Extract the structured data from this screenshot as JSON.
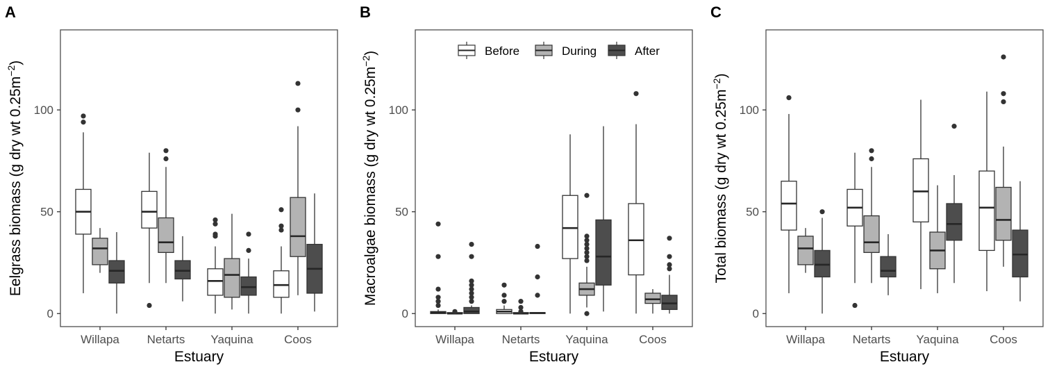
{
  "colors": {
    "Before": "#ffffff",
    "During": "#b3b3b3",
    "After": "#4d4d4d",
    "line": "#333333",
    "frame": "#4d4d4d"
  },
  "legend": {
    "items": [
      "Before",
      "During",
      "After"
    ],
    "placement": "top-center of panel B"
  },
  "chart_data": [
    {
      "type": "boxplot",
      "panel": "A",
      "xlabel": "Estuary",
      "ylabel": "Eelgrass biomass (g dry wt 0.25m",
      "ylabel_sup": "−2",
      "ylabel_end": ")",
      "categories": [
        "Willapa",
        "Netarts",
        "Yaquina",
        "Coos"
      ],
      "groups": [
        "Before",
        "During",
        "After"
      ],
      "yticks": [
        0,
        50,
        100
      ],
      "ylim": [
        -6.4,
        139.3
      ],
      "boxes": [
        [
          {
            "lo": 10,
            "q1": 39,
            "med": 50,
            "q3": 61,
            "hi": 89,
            "out": [
              94,
              97
            ]
          },
          {
            "lo": 20,
            "q1": 24,
            "med": 32,
            "q3": 37,
            "hi": 42,
            "out": []
          },
          {
            "lo": 0,
            "q1": 15,
            "med": 21,
            "q3": 26,
            "hi": 40,
            "out": []
          }
        ],
        [
          {
            "lo": 15,
            "q1": 42,
            "med": 50,
            "q3": 60,
            "hi": 79,
            "out": [
              4
            ]
          },
          {
            "lo": 15,
            "q1": 30,
            "med": 35,
            "q3": 47,
            "hi": 72,
            "out": [
              76,
              80
            ]
          },
          {
            "lo": 6,
            "q1": 17,
            "med": 21,
            "q3": 26,
            "hi": 38,
            "out": []
          }
        ],
        [
          {
            "lo": 0,
            "q1": 9,
            "med": 16,
            "q3": 22,
            "hi": 33,
            "out": [
              38,
              39,
              44,
              46
            ]
          },
          {
            "lo": 2,
            "q1": 8,
            "med": 19,
            "q3": 27,
            "hi": 49,
            "out": []
          },
          {
            "lo": 0,
            "q1": 9,
            "med": 13,
            "q3": 18,
            "hi": 27,
            "out": [
              31,
              39
            ]
          }
        ],
        [
          {
            "lo": 0,
            "q1": 8,
            "med": 14,
            "q3": 21,
            "hi": 33,
            "out": [
              41,
              43,
              51
            ]
          },
          {
            "lo": 9,
            "q1": 28,
            "med": 38,
            "q3": 57,
            "hi": 92,
            "out": [
              100,
              113
            ]
          },
          {
            "lo": 1,
            "q1": 10,
            "med": 22,
            "q3": 34,
            "hi": 59,
            "out": []
          }
        ]
      ]
    },
    {
      "type": "boxplot",
      "panel": "B",
      "xlabel": "Estuary",
      "ylabel": "Macroalgae biomass (g dry wt 0.25m",
      "ylabel_sup": "−2",
      "ylabel_end": ")",
      "categories": [
        "Willapa",
        "Netarts",
        "Yaquina",
        "Coos"
      ],
      "groups": [
        "Before",
        "During",
        "After"
      ],
      "yticks": [
        0,
        50,
        100
      ],
      "ylim": [
        -6.4,
        139.3
      ],
      "boxes": [
        [
          {
            "lo": 0,
            "q1": 0,
            "med": 0.5,
            "q3": 1,
            "hi": 2,
            "out": [
              4,
              6,
              8,
              12,
              28,
              44
            ]
          },
          {
            "lo": 0,
            "q1": 0,
            "med": 0,
            "q3": 0.5,
            "hi": 0.5,
            "out": [
              1
            ]
          },
          {
            "lo": 0,
            "q1": 0,
            "med": 1,
            "q3": 3,
            "hi": 4,
            "out": [
              6,
              8,
              10,
              12,
              14,
              16,
              28,
              34
            ]
          }
        ],
        [
          {
            "lo": 0,
            "q1": 0,
            "med": 1,
            "q3": 2,
            "hi": 4,
            "out": [
              6,
              9,
              14
            ]
          },
          {
            "lo": 0,
            "q1": 0,
            "med": 0,
            "q3": 0.5,
            "hi": 0.5,
            "out": [
              1,
              3,
              6
            ]
          },
          {
            "lo": 0,
            "q1": 0,
            "med": 0.3,
            "q3": 0.5,
            "hi": 0.5,
            "out": [
              9,
              18,
              33
            ]
          }
        ],
        [
          {
            "lo": 0,
            "q1": 27,
            "med": 42,
            "q3": 58,
            "hi": 88,
            "out": []
          },
          {
            "lo": 3,
            "q1": 9,
            "med": 12,
            "q3": 15,
            "hi": 23,
            "out": [
              0,
              26,
              28,
              30,
              32,
              34,
              36,
              38,
              58
            ]
          },
          {
            "lo": 1,
            "q1": 14,
            "med": 28,
            "q3": 46,
            "hi": 92,
            "out": []
          }
        ],
        [
          {
            "lo": 0,
            "q1": 19,
            "med": 36,
            "q3": 54,
            "hi": 93,
            "out": [
              108
            ]
          },
          {
            "lo": 0,
            "q1": 5,
            "med": 7,
            "q3": 10,
            "hi": 12,
            "out": []
          },
          {
            "lo": 0,
            "q1": 2,
            "med": 5,
            "q3": 9,
            "hi": 19,
            "out": [
              22,
              24,
              28,
              37
            ]
          }
        ]
      ]
    },
    {
      "type": "boxplot",
      "panel": "C",
      "xlabel": "Estuary",
      "ylabel": "Total biomass (g dry wt 0.25m",
      "ylabel_sup": "−2",
      "ylabel_end": ")",
      "categories": [
        "Willapa",
        "Netarts",
        "Yaquina",
        "Coos"
      ],
      "groups": [
        "Before",
        "During",
        "After"
      ],
      "yticks": [
        0,
        50,
        100
      ],
      "ylim": [
        -6.4,
        139.3
      ],
      "boxes": [
        [
          {
            "lo": 10,
            "q1": 41,
            "med": 54,
            "q3": 65,
            "hi": 98,
            "out": [
              106
            ]
          },
          {
            "lo": 20,
            "q1": 24,
            "med": 32,
            "q3": 38,
            "hi": 42,
            "out": []
          },
          {
            "lo": 0,
            "q1": 18,
            "med": 24,
            "q3": 31,
            "hi": 47,
            "out": [
              50
            ]
          }
        ],
        [
          {
            "lo": 15,
            "q1": 43,
            "med": 52,
            "q3": 61,
            "hi": 79,
            "out": [
              4
            ]
          },
          {
            "lo": 15,
            "q1": 30,
            "med": 35,
            "q3": 48,
            "hi": 72,
            "out": [
              76,
              80
            ]
          },
          {
            "lo": 9,
            "q1": 18,
            "med": 21,
            "q3": 28,
            "hi": 39,
            "out": []
          }
        ],
        [
          {
            "lo": 12,
            "q1": 45,
            "med": 60,
            "q3": 76,
            "hi": 105,
            "out": []
          },
          {
            "lo": 10,
            "q1": 22,
            "med": 31,
            "q3": 40,
            "hi": 63,
            "out": []
          },
          {
            "lo": 15,
            "q1": 36,
            "med": 44,
            "q3": 54,
            "hi": 68,
            "out": [
              92
            ]
          }
        ],
        [
          {
            "lo": 11,
            "q1": 31,
            "med": 52,
            "q3": 70,
            "hi": 109,
            "out": []
          },
          {
            "lo": 23,
            "q1": 36,
            "med": 46,
            "q3": 62,
            "hi": 82,
            "out": [
              104,
              108,
              126
            ]
          },
          {
            "lo": 6,
            "q1": 18,
            "med": 29,
            "q3": 41,
            "hi": 65,
            "out": []
          }
        ]
      ]
    }
  ]
}
